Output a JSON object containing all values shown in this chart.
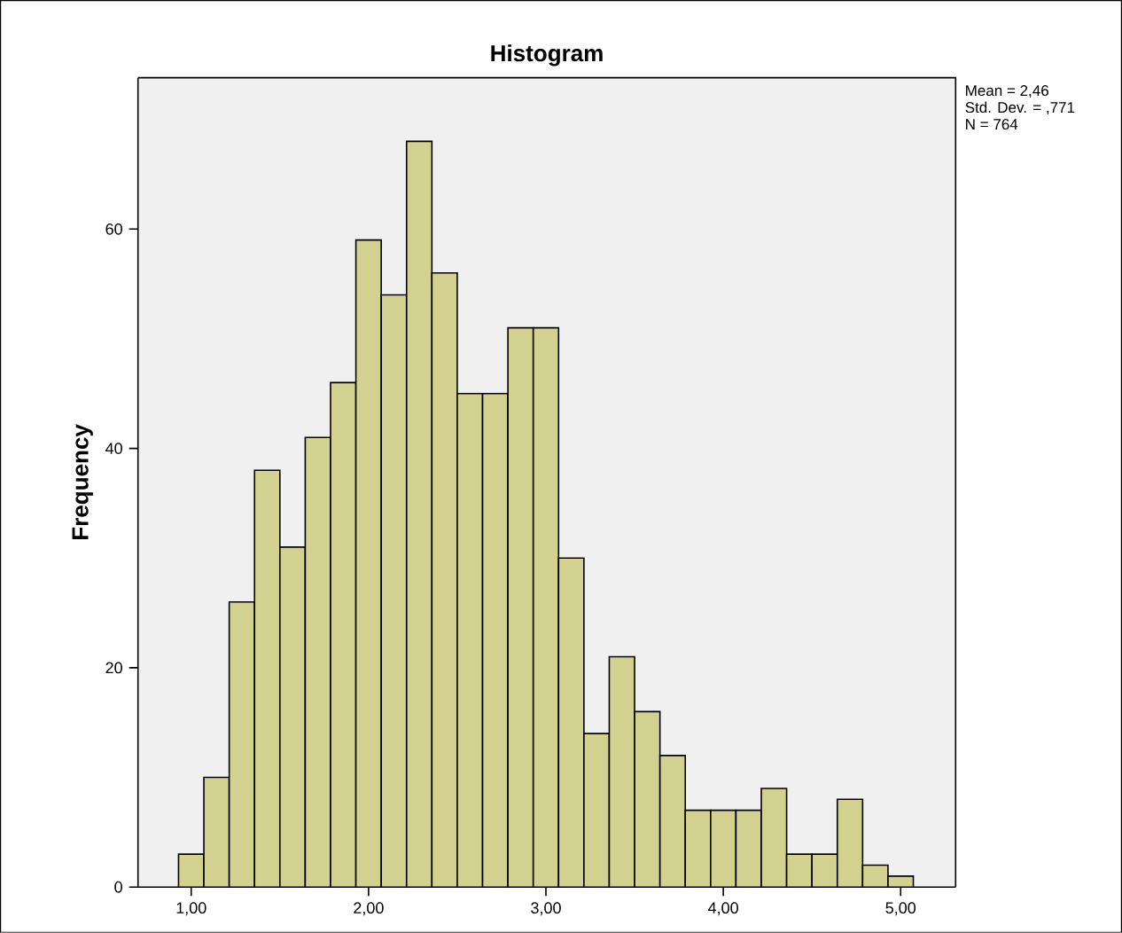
{
  "chart_data": {
    "type": "histogram",
    "title": "Histogram",
    "ylabel": "Frequency",
    "bins": [
      0.9286,
      1.0714,
      1.2143,
      1.3571,
      1.5,
      1.6429,
      1.7857,
      1.9286,
      2.0714,
      2.2143,
      2.3571,
      2.5,
      2.6429,
      2.7857,
      2.9286,
      3.0714,
      3.2143,
      3.3571,
      3.5,
      3.6429,
      3.7857,
      3.9286,
      4.0714,
      4.2143,
      4.3571,
      4.5,
      4.6429,
      4.7857,
      4.9286,
      5.0714
    ],
    "values": [
      3,
      10,
      26,
      38,
      31,
      41,
      46,
      59,
      54,
      68,
      56,
      45,
      45,
      51,
      51,
      30,
      14,
      21,
      16,
      12,
      7,
      7,
      7,
      9,
      3,
      3,
      8,
      2,
      1
    ],
    "color": "#d3d18f",
    "xlim": [
      0.7,
      5.31
    ],
    "ylim": [
      0,
      73.8
    ],
    "xticks": [
      {
        "value": 1,
        "label": "1,00"
      },
      {
        "value": 2,
        "label": "2,00"
      },
      {
        "value": 3,
        "label": "3,00"
      },
      {
        "value": 4,
        "label": "4,00"
      },
      {
        "value": 5,
        "label": "5,00"
      }
    ],
    "yticks": [
      0,
      20,
      40,
      60
    ],
    "grid": false,
    "annotations": [
      "Mean = 2,46",
      "Std. Dev. = ,771",
      "N = 764"
    ]
  }
}
